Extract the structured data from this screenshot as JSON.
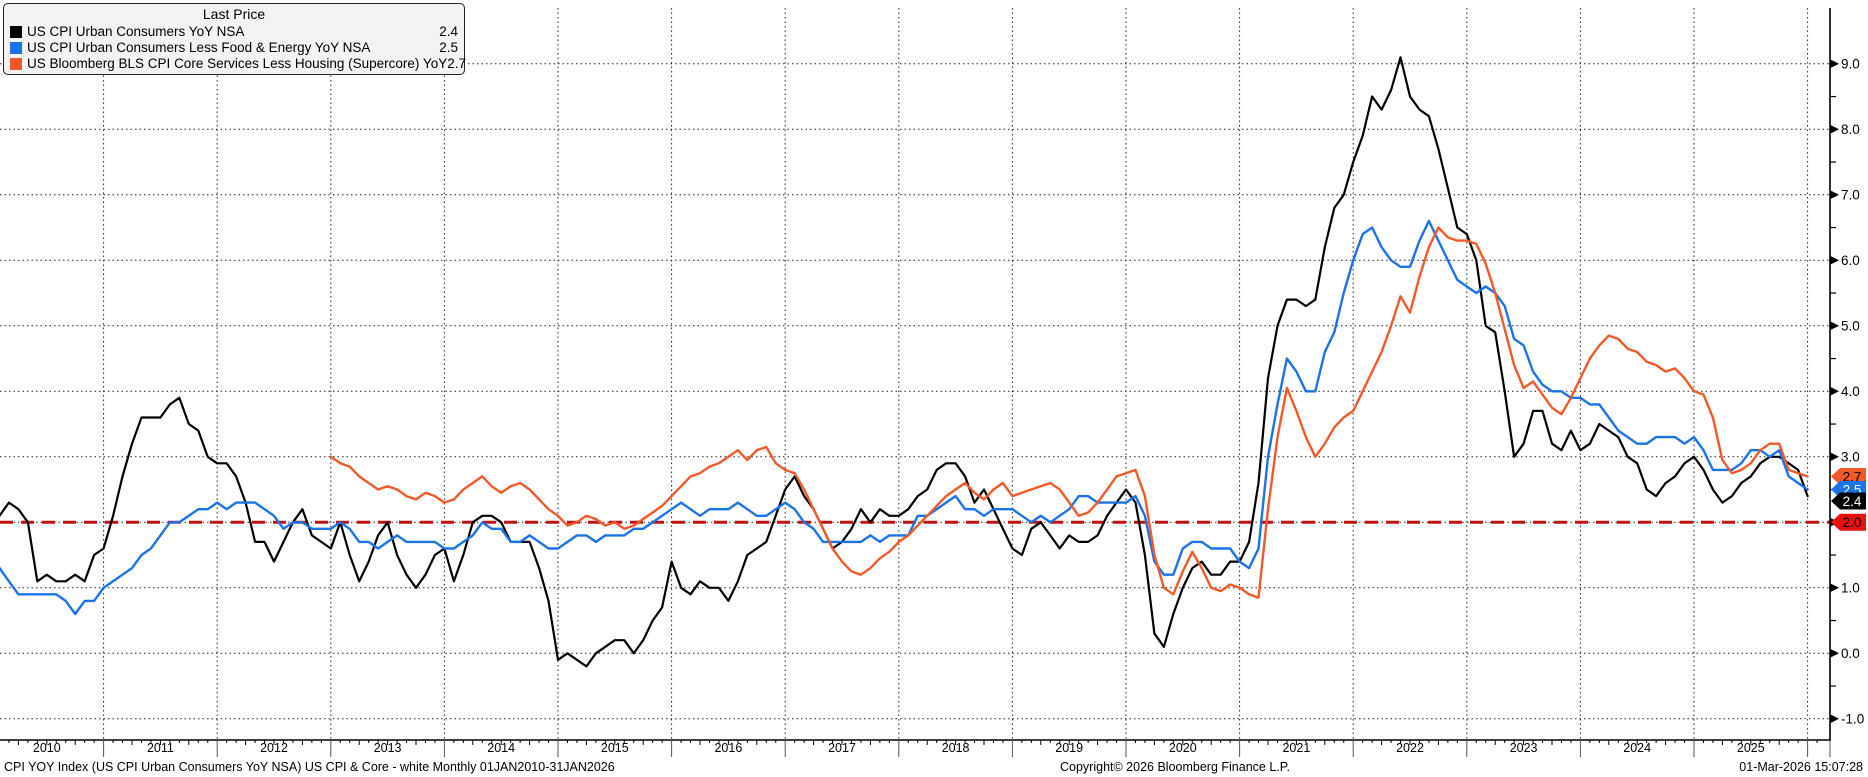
{
  "legend": {
    "title": "Last Price",
    "items": [
      {
        "label": "US CPI Urban Consumers YoY NSA",
        "value": "2.4",
        "color": "#000000"
      },
      {
        "label": "US CPI Urban Consumers Less Food & Energy YoY NSA",
        "value": "2.5",
        "color": "#1a73e8"
      },
      {
        "label": "US Bloomberg BLS CPI Core Services Less Housing (Supercore) YoY",
        "value": "2.7",
        "color": "#f05a28"
      }
    ]
  },
  "y_axis": {
    "min": -1,
    "max": 9,
    "tick_step": 1,
    "tick_labels": [
      "9.0",
      "8.0",
      "7.0",
      "6.0",
      "5.0",
      "4.0",
      "3.0",
      "2.0",
      "1.0",
      "0.0",
      "-1.0"
    ]
  },
  "x_axis": {
    "year_labels": [
      "2010",
      "2011",
      "2012",
      "2013",
      "2014",
      "2015",
      "2016",
      "2017",
      "2018",
      "2019",
      "2020",
      "2021",
      "2022",
      "2023",
      "2024",
      "2025"
    ]
  },
  "threshold": {
    "value": 2.0,
    "label": "2.0",
    "line_color": "#c11212",
    "badge_color": "#ea1111",
    "text_color": "#000000"
  },
  "badges": [
    {
      "label": "2.7",
      "value": 2.7,
      "bg": "#f05a28",
      "fg": "#000000"
    },
    {
      "label": "2.5",
      "value": 2.5,
      "bg": "#1a73e8",
      "fg": "#ffffff"
    },
    {
      "label": "2.4",
      "value": 2.4,
      "bg": "#000000",
      "fg": "#ffffff"
    }
  ],
  "footer": {
    "left": "CPI YOY Index (US CPI Urban Consumers YoY NSA) US CPI & Core - white Monthly 01JAN2010-31JAN2026",
    "copyright": "Copyright© 2026 Bloomberg Finance L.P.",
    "timestamp": "01-Mar-2026 15:07:28"
  },
  "chart_data": {
    "type": "line",
    "title": "US CPI & Core - white Monthly 01JAN2010-31JAN2026",
    "x_start": "2010-01",
    "x_end": "2026-01",
    "x_unit": "month",
    "ylim": [
      -1.0,
      9.0
    ],
    "grid": true,
    "legend_position": "top-left",
    "threshold_line": {
      "value": 2.0,
      "style": "dashed",
      "color": "red"
    },
    "series": [
      {
        "name": "US CPI Urban Consumers YoY NSA",
        "color": "#000000",
        "start_month_index": 0,
        "last_value": 2.4,
        "values": [
          2.6,
          2.1,
          2.3,
          2.2,
          2.0,
          1.1,
          1.2,
          1.1,
          1.1,
          1.2,
          1.1,
          1.5,
          1.6,
          2.1,
          2.7,
          3.2,
          3.6,
          3.6,
          3.6,
          3.8,
          3.9,
          3.5,
          3.4,
          3.0,
          2.9,
          2.9,
          2.7,
          2.3,
          1.7,
          1.7,
          1.4,
          1.7,
          2.0,
          2.2,
          1.8,
          1.7,
          1.6,
          2.0,
          1.5,
          1.1,
          1.4,
          1.8,
          2.0,
          1.5,
          1.2,
          1.0,
          1.2,
          1.5,
          1.6,
          1.1,
          1.5,
          2.0,
          2.1,
          2.1,
          2.0,
          1.7,
          1.7,
          1.7,
          1.3,
          0.8,
          -0.1,
          0.0,
          -0.1,
          -0.2,
          0.0,
          0.1,
          0.2,
          0.2,
          0.0,
          0.2,
          0.5,
          0.7,
          1.4,
          1.0,
          0.9,
          1.1,
          1.0,
          1.0,
          0.8,
          1.1,
          1.5,
          1.6,
          1.7,
          2.1,
          2.5,
          2.7,
          2.4,
          2.2,
          1.9,
          1.6,
          1.7,
          1.9,
          2.2,
          2.0,
          2.2,
          2.1,
          2.1,
          2.2,
          2.4,
          2.5,
          2.8,
          2.9,
          2.9,
          2.7,
          2.3,
          2.5,
          2.2,
          1.9,
          1.6,
          1.5,
          1.9,
          2.0,
          1.8,
          1.6,
          1.8,
          1.7,
          1.7,
          1.8,
          2.1,
          2.3,
          2.5,
          2.3,
          1.5,
          0.3,
          0.1,
          0.6,
          1.0,
          1.3,
          1.4,
          1.2,
          1.2,
          1.4,
          1.4,
          1.7,
          2.6,
          4.2,
          5.0,
          5.4,
          5.4,
          5.3,
          5.4,
          6.2,
          6.8,
          7.0,
          7.5,
          7.9,
          8.5,
          8.3,
          8.6,
          9.1,
          8.5,
          8.3,
          8.2,
          7.7,
          7.1,
          6.5,
          6.4,
          6.0,
          5.0,
          4.9,
          4.0,
          3.0,
          3.2,
          3.7,
          3.7,
          3.2,
          3.1,
          3.4,
          3.1,
          3.2,
          3.5,
          3.4,
          3.3,
          3.0,
          2.9,
          2.5,
          2.4,
          2.6,
          2.7,
          2.9,
          3.0,
          2.8,
          2.5,
          2.3,
          2.4,
          2.6,
          2.7,
          2.9,
          3.0,
          3.0,
          2.9,
          2.8,
          2.4
        ]
      },
      {
        "name": "US CPI Urban Consumers Less Food & Energy YoY NSA",
        "color": "#1a73e8",
        "start_month_index": 0,
        "last_value": 2.5,
        "values": [
          1.6,
          1.3,
          1.1,
          0.9,
          0.9,
          0.9,
          0.9,
          0.9,
          0.8,
          0.6,
          0.8,
          0.8,
          1.0,
          1.1,
          1.2,
          1.3,
          1.5,
          1.6,
          1.8,
          2.0,
          2.0,
          2.1,
          2.2,
          2.2,
          2.3,
          2.2,
          2.3,
          2.3,
          2.3,
          2.2,
          2.1,
          1.9,
          2.0,
          2.0,
          1.9,
          1.9,
          1.9,
          2.0,
          1.9,
          1.7,
          1.7,
          1.6,
          1.7,
          1.8,
          1.7,
          1.7,
          1.7,
          1.7,
          1.6,
          1.6,
          1.7,
          1.8,
          2.0,
          1.9,
          1.9,
          1.7,
          1.7,
          1.8,
          1.7,
          1.6,
          1.6,
          1.7,
          1.8,
          1.8,
          1.7,
          1.8,
          1.8,
          1.8,
          1.9,
          1.9,
          2.0,
          2.1,
          2.2,
          2.3,
          2.2,
          2.1,
          2.2,
          2.2,
          2.2,
          2.3,
          2.2,
          2.1,
          2.1,
          2.2,
          2.3,
          2.2,
          2.0,
          1.9,
          1.7,
          1.7,
          1.7,
          1.7,
          1.7,
          1.8,
          1.7,
          1.8,
          1.8,
          1.8,
          2.1,
          2.1,
          2.2,
          2.3,
          2.4,
          2.2,
          2.2,
          2.1,
          2.2,
          2.2,
          2.2,
          2.1,
          2.0,
          2.1,
          2.0,
          2.1,
          2.2,
          2.4,
          2.4,
          2.3,
          2.3,
          2.3,
          2.3,
          2.4,
          2.1,
          1.4,
          1.2,
          1.2,
          1.6,
          1.7,
          1.7,
          1.6,
          1.6,
          1.6,
          1.4,
          1.3,
          1.6,
          3.0,
          3.8,
          4.5,
          4.3,
          4.0,
          4.0,
          4.6,
          4.9,
          5.5,
          6.0,
          6.4,
          6.5,
          6.2,
          6.0,
          5.9,
          5.9,
          6.3,
          6.6,
          6.3,
          6.0,
          5.7,
          5.6,
          5.5,
          5.6,
          5.5,
          5.3,
          4.8,
          4.7,
          4.3,
          4.1,
          4.0,
          4.0,
          3.9,
          3.9,
          3.8,
          3.8,
          3.6,
          3.4,
          3.3,
          3.2,
          3.2,
          3.3,
          3.3,
          3.3,
          3.2,
          3.3,
          3.1,
          2.8,
          2.8,
          2.8,
          2.9,
          3.1,
          3.1,
          3.0,
          3.1,
          2.7,
          2.6,
          2.5
        ]
      },
      {
        "name": "US Bloomberg BLS CPI Core Services Less Housing (Supercore) YoY",
        "color": "#f05a28",
        "start_month_index": 36,
        "last_value": 2.7,
        "values": [
          3.0,
          2.9,
          2.85,
          2.7,
          2.6,
          2.5,
          2.55,
          2.5,
          2.4,
          2.35,
          2.45,
          2.4,
          2.3,
          2.35,
          2.5,
          2.6,
          2.7,
          2.55,
          2.45,
          2.55,
          2.6,
          2.5,
          2.35,
          2.2,
          2.1,
          1.95,
          2.0,
          2.1,
          2.05,
          1.95,
          2.0,
          1.9,
          1.95,
          2.05,
          2.15,
          2.25,
          2.4,
          2.55,
          2.7,
          2.75,
          2.85,
          2.9,
          3.0,
          3.1,
          2.95,
          3.1,
          3.15,
          2.9,
          2.8,
          2.75,
          2.5,
          2.2,
          1.9,
          1.6,
          1.4,
          1.25,
          1.2,
          1.3,
          1.45,
          1.55,
          1.7,
          1.8,
          1.95,
          2.1,
          2.25,
          2.4,
          2.5,
          2.6,
          2.45,
          2.35,
          2.5,
          2.6,
          2.4,
          2.45,
          2.5,
          2.55,
          2.6,
          2.5,
          2.3,
          2.1,
          2.15,
          2.3,
          2.5,
          2.7,
          2.75,
          2.8,
          2.4,
          1.5,
          1.0,
          0.9,
          1.25,
          1.55,
          1.3,
          1.0,
          0.95,
          1.05,
          1.0,
          0.9,
          0.85,
          2.2,
          3.3,
          4.05,
          3.7,
          3.3,
          3.0,
          3.2,
          3.45,
          3.6,
          3.7,
          4.0,
          4.3,
          4.6,
          5.0,
          5.45,
          5.2,
          5.75,
          6.2,
          6.5,
          6.35,
          6.3,
          6.3,
          6.25,
          5.95,
          5.5,
          4.95,
          4.4,
          4.05,
          4.15,
          3.95,
          3.75,
          3.65,
          3.9,
          4.2,
          4.5,
          4.7,
          4.85,
          4.8,
          4.65,
          4.6,
          4.45,
          4.4,
          4.3,
          4.35,
          4.2,
          4.0,
          3.95,
          3.6,
          2.95,
          2.75,
          2.8,
          2.9,
          3.1,
          3.2,
          3.2,
          2.8,
          2.75,
          2.7
        ]
      }
    ]
  }
}
